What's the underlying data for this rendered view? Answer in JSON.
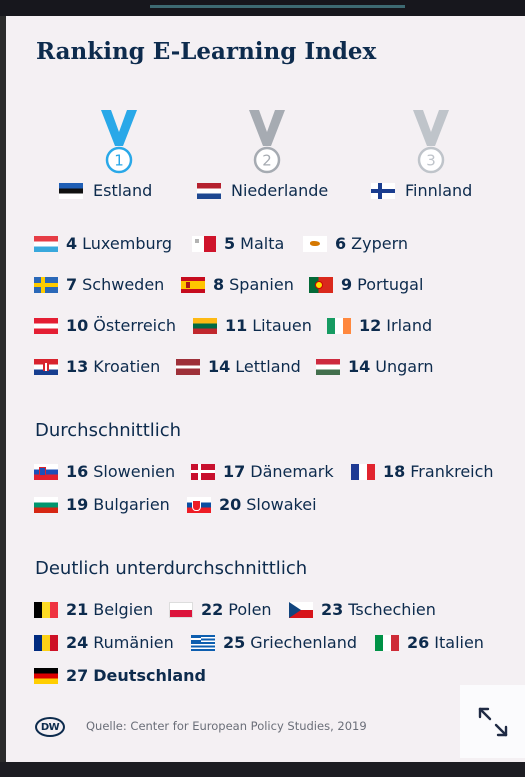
{
  "title": "Ranking E-Learning Index",
  "podium": [
    {
      "rank": "1",
      "country": "Estland",
      "flag": "ee",
      "medal_color": "#29a8e8"
    },
    {
      "rank": "2",
      "country": "Niederlande",
      "flag": "nl",
      "medal_color": "#a6abb2"
    },
    {
      "rank": "3",
      "country": "Finnland",
      "flag": "fi",
      "medal_color": "#bfc4ca"
    }
  ],
  "top_group": [
    {
      "rank": "4",
      "country": "Luxemburg",
      "flag": "lu"
    },
    {
      "rank": "5",
      "country": "Malta",
      "flag": "mt"
    },
    {
      "rank": "6",
      "country": "Zypern",
      "flag": "cy"
    },
    {
      "rank": "7",
      "country": "Schweden",
      "flag": "se"
    },
    {
      "rank": "8",
      "country": "Spanien",
      "flag": "es"
    },
    {
      "rank": "9",
      "country": "Portugal",
      "flag": "pt"
    },
    {
      "rank": "10",
      "country": "Österreich",
      "flag": "at"
    },
    {
      "rank": "11",
      "country": "Litauen",
      "flag": "lt"
    },
    {
      "rank": "12",
      "country": "Irland",
      "flag": "ie"
    },
    {
      "rank": "13",
      "country": "Kroatien",
      "flag": "hr"
    },
    {
      "rank": "14",
      "country": "Lettland",
      "flag": "lv"
    },
    {
      "rank": "14",
      "country": "Ungarn",
      "flag": "hu"
    }
  ],
  "average": {
    "heading": "Durchschnittlich",
    "entries": [
      {
        "rank": "16",
        "country": "Slowenien",
        "flag": "si"
      },
      {
        "rank": "17",
        "country": "Dänemark",
        "flag": "dk"
      },
      {
        "rank": "18",
        "country": "Frankreich",
        "flag": "fr"
      },
      {
        "rank": "19",
        "country": "Bulgarien",
        "flag": "bg"
      },
      {
        "rank": "20",
        "country": "Slowakei",
        "flag": "sk"
      }
    ]
  },
  "below": {
    "heading": "Deutlich unterdurchschnittlich",
    "entries": [
      {
        "rank": "21",
        "country": "Belgien",
        "flag": "be"
      },
      {
        "rank": "22",
        "country": "Polen",
        "flag": "pl"
      },
      {
        "rank": "23",
        "country": "Tschechien",
        "flag": "cz"
      },
      {
        "rank": "24",
        "country": "Rumänien",
        "flag": "ro"
      },
      {
        "rank": "25",
        "country": "Griechenland",
        "flag": "gr"
      },
      {
        "rank": "26",
        "country": "Italien",
        "flag": "it"
      },
      {
        "rank": "27",
        "country": "Deutschland",
        "flag": "de",
        "highlight": true
      }
    ]
  },
  "footer": {
    "logo": "DW",
    "source": "Quelle: Center for European Policy Studies, 2019"
  },
  "icons": {
    "expand": "expand-icon"
  },
  "colors": {
    "text": "#0d2b4d",
    "card_bg": "#f4f0f3",
    "muted": "#6a6e78"
  }
}
